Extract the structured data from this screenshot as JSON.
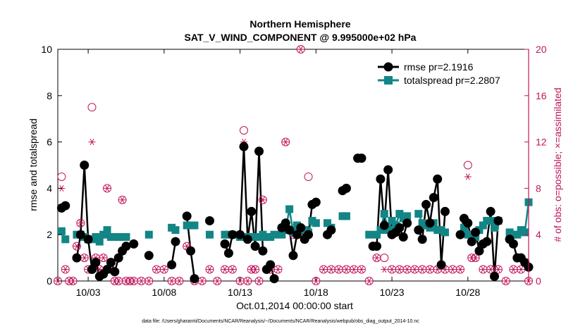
{
  "chart_data": {
    "type": "line",
    "title": "Northern Hemisphere",
    "subtitle": "SAT_V_WIND_COMPONENT @ 9.995000e+02 hPa",
    "xlabel": "Oct.01,2014 00:00:00 start",
    "ylabel": "rmse and totalspread",
    "y2label": "# of obs: o=possible; ×=assimilated",
    "footnote": "data file: /Users/gharamti/Documents/NCAR/Reanalysis/~/Documents/NCAR/Reanalysis/webpub/obs_diag_output_2014-10.nc",
    "xlim": [
      0.0,
      31.0
    ],
    "ylim": [
      0,
      10
    ],
    "y2lim": [
      0,
      20
    ],
    "xticks": [
      2,
      7,
      12,
      17,
      22,
      27
    ],
    "xtick_labels": [
      "10/03",
      "10/08",
      "10/13",
      "10/18",
      "10/23",
      "10/28"
    ],
    "yticks": [
      0,
      2,
      4,
      6,
      8,
      10
    ],
    "ytick_labels": [
      "0",
      "2",
      "4",
      "6",
      "8",
      "10"
    ],
    "y2ticks": [
      0,
      4,
      8,
      12,
      16,
      20
    ],
    "y2tick_labels": [
      "0",
      "4",
      "8",
      "12",
      "16",
      "20"
    ],
    "colors": {
      "rmse": "#000000",
      "spread": "#138585",
      "obs": "#c0145a"
    },
    "series": [
      {
        "name": "rmse",
        "legend_label": "rmse pr=2.1916",
        "marker": "circle",
        "segments": [
          {
            "x": [
              0.25,
              0.5
            ],
            "y": [
              3.15,
              3.25
            ]
          },
          {
            "x": [
              1.25,
              1.5,
              1.75,
              2.0,
              2.25,
              2.5,
              2.75,
              3.0,
              3.25,
              3.5,
              3.75,
              4.0,
              4.25,
              4.5
            ],
            "y": [
              1.0,
              2.0,
              5.0,
              1.8,
              0.5,
              0.8,
              0.2,
              0.3,
              0.5,
              0.8,
              0.4,
              1.0,
              1.3,
              1.5
            ]
          },
          {
            "x": [
              5.0
            ],
            "y": [
              1.6
            ]
          },
          {
            "x": [
              6.0
            ],
            "y": [
              1.1
            ]
          },
          {
            "x": [
              7.5,
              7.75
            ],
            "y": [
              0.7,
              1.7
            ]
          },
          {
            "x": [
              8.5,
              8.75,
              9.0
            ],
            "y": [
              2.8,
              1.3,
              0.1
            ]
          },
          {
            "x": [
              10.0
            ],
            "y": [
              2.6
            ]
          },
          {
            "x": [
              11.0,
              11.25,
              11.5
            ],
            "y": [
              1.6,
              1.2,
              2.0
            ]
          },
          {
            "x": [
              12.0,
              12.25,
              12.5,
              12.75,
              13.0,
              13.25,
              13.5
            ],
            "y": [
              2.0,
              5.8,
              1.8,
              3.0,
              1.5,
              5.6,
              1.3
            ]
          },
          {
            "x": [
              13.75,
              14.0,
              14.25
            ],
            "y": [
              0.5,
              0.7,
              0.1
            ]
          },
          {
            "x": [
              14.75,
              15.0,
              15.25,
              15.5,
              15.75,
              16.0,
              16.25,
              16.5,
              16.75,
              17.0
            ],
            "y": [
              2.3,
              2.5,
              2.2,
              1.1,
              2.0,
              2.3,
              1.8,
              2.0,
              3.3,
              3.4
            ]
          },
          {
            "x": [
              17.75,
              18.0
            ],
            "y": [
              2.0,
              2.2
            ]
          },
          {
            "x": [
              18.75,
              19.0
            ],
            "y": [
              3.9,
              4.0
            ]
          },
          {
            "x": [
              19.75,
              20.0
            ],
            "y": [
              5.3,
              5.3
            ]
          },
          {
            "x": [
              20.75,
              21.0,
              21.25,
              21.5,
              21.75,
              22.0,
              22.25,
              22.5,
              22.75,
              23.0
            ],
            "y": [
              1.5,
              1.5,
              4.4,
              2.4,
              4.8,
              2.0,
              2.1,
              2.3,
              1.9,
              2.5
            ]
          },
          {
            "x": [
              23.75,
              24.0,
              24.25,
              24.5,
              24.75,
              25.0,
              25.25,
              25.5
            ],
            "y": [
              2.2,
              1.8,
              3.3,
              2.5,
              3.6,
              4.4,
              0.7,
              3.0
            ]
          },
          {
            "x": [
              26.5,
              26.75,
              27.0,
              27.25,
              27.5,
              27.75,
              28.0,
              28.25,
              28.5,
              28.75,
              29.0
            ],
            "y": [
              2.0,
              2.7,
              2.5,
              1.7,
              2.1,
              1.3,
              1.6,
              1.7,
              3.0,
              0.2,
              2.6
            ]
          },
          {
            "x": [
              29.75,
              30.0,
              30.25,
              30.5,
              30.75,
              31.0
            ],
            "y": [
              1.8,
              1.6,
              1.0,
              1.0,
              0.8,
              0.6
            ]
          }
        ]
      },
      {
        "name": "totalspread",
        "legend_label": "totalspread pr=2.2807",
        "marker": "square",
        "segments": [
          {
            "x": [
              0.25,
              0.5
            ],
            "y": [
              2.15,
              1.8
            ]
          },
          {
            "x": [
              1.25,
              1.5,
              1.75,
              2.0,
              2.25,
              2.5,
              2.75,
              3.0,
              3.25,
              3.5,
              3.75,
              4.0,
              4.25,
              4.5
            ],
            "y": [
              2.0,
              2.0,
              1.9,
              1.8,
              1.8,
              1.9,
              1.7,
              2.0,
              2.2,
              1.9,
              1.9,
              1.9,
              1.9,
              1.9
            ]
          },
          {
            "x": [
              6.0
            ],
            "y": [
              2.0
            ]
          },
          {
            "x": [
              7.5,
              7.75
            ],
            "y": [
              2.3,
              2.2
            ]
          },
          {
            "x": [
              8.5,
              8.75,
              9.0
            ],
            "y": [
              2.4,
              2.4,
              2.4
            ]
          },
          {
            "x": [
              10.0
            ],
            "y": [
              2.0
            ]
          },
          {
            "x": [
              11.0,
              11.25,
              11.5
            ],
            "y": [
              2.0,
              2.0,
              2.0
            ]
          },
          {
            "x": [
              12.0,
              12.25,
              12.5,
              12.75,
              13.0,
              13.25,
              13.5
            ],
            "y": [
              1.9,
              1.9,
              1.9,
              1.9,
              1.9,
              1.9,
              2.0
            ]
          },
          {
            "x": [
              13.75,
              14.0,
              14.25
            ],
            "y": [
              1.9,
              1.9,
              2.0
            ]
          },
          {
            "x": [
              14.75,
              15.0,
              15.25,
              15.5,
              15.75,
              16.0,
              16.25,
              16.5,
              16.75,
              17.0
            ],
            "y": [
              2.0,
              2.2,
              3.1,
              2.1,
              2.4,
              2.2,
              2.2,
              2.1,
              2.6,
              2.5
            ]
          },
          {
            "x": [
              17.75,
              18.0
            ],
            "y": [
              2.5,
              2.3
            ]
          },
          {
            "x": [
              18.75,
              19.0
            ],
            "y": [
              2.8,
              2.8
            ]
          },
          {
            "x": [
              20.5,
              21.0,
              21.25,
              21.5,
              21.75,
              22.0,
              22.25,
              22.5,
              22.75,
              23.0
            ],
            "y": [
              2.0,
              2.0,
              2.2,
              2.9,
              2.2,
              2.6,
              2.4,
              2.9,
              2.7,
              2.8
            ]
          },
          {
            "x": [
              23.75,
              24.0,
              24.25,
              24.5,
              24.75,
              25.0,
              25.25,
              25.5
            ],
            "y": [
              2.9,
              2.5,
              2.4,
              2.3,
              2.5,
              2.2,
              2.2,
              2.1
            ]
          },
          {
            "x": [
              26.75,
              27.0,
              27.25,
              27.5,
              27.75,
              28.0,
              28.25,
              28.5,
              28.75,
              29.0
            ],
            "y": [
              2.3,
              2.0,
              2.0,
              1.9,
              2.2,
              2.4,
              2.6,
              2.6,
              2.3,
              2.6
            ]
          },
          {
            "x": [
              29.75,
              30.0,
              30.25,
              30.5,
              30.75,
              31.0
            ],
            "y": [
              2.1,
              2.0,
              2.0,
              2.2,
              2.1,
              3.4
            ]
          }
        ]
      },
      {
        "name": "obs_possible",
        "axis": "right",
        "marker": "open-circle",
        "x": [
          0.0,
          0.25,
          0.5,
          0.75,
          1.0,
          1.25,
          1.5,
          1.75,
          2.0,
          2.25,
          2.5,
          2.75,
          3.0,
          3.25,
          3.5,
          3.75,
          4.0,
          4.25,
          4.5,
          4.75,
          5.0,
          5.5,
          6.0,
          6.5,
          7.0,
          7.5,
          8.0,
          8.5,
          9.0,
          9.5,
          10.0,
          10.5,
          11.0,
          11.5,
          12.0,
          12.25,
          12.5,
          12.75,
          13.0,
          13.25,
          13.5,
          14.0,
          14.5,
          15.0,
          15.5,
          16.0,
          16.5,
          17.0,
          17.5,
          18.0,
          18.5,
          19.0,
          19.5,
          20.0,
          20.5,
          21.0,
          21.5,
          22.0,
          22.5,
          23.0,
          23.5,
          24.0,
          24.5,
          25.0,
          25.5,
          26.0,
          26.5,
          27.0,
          27.25,
          27.5,
          28.0,
          28.5,
          29.0,
          29.5,
          30.0,
          30.5,
          31.0
        ],
        "y": [
          0,
          9,
          1,
          0,
          0,
          3,
          5,
          2,
          1,
          15,
          2,
          1,
          2,
          8,
          1,
          0,
          0,
          7,
          0,
          0,
          0,
          0,
          0,
          1,
          1,
          0,
          0,
          3,
          0,
          0,
          1,
          0,
          1,
          1,
          0,
          13,
          0,
          1,
          1,
          0,
          7,
          1,
          1,
          12,
          4,
          20,
          9,
          0,
          1,
          1,
          1,
          1,
          1,
          1,
          0,
          2,
          2,
          1,
          1,
          1,
          1,
          1,
          1,
          1,
          1,
          1,
          1,
          10,
          2,
          2,
          1,
          1,
          1,
          0,
          1,
          1,
          0
        ]
      },
      {
        "name": "obs_assimilated",
        "axis": "right",
        "marker": "asterisk",
        "x": [
          0.0,
          0.25,
          0.5,
          0.75,
          1.0,
          1.25,
          1.5,
          1.75,
          2.0,
          2.25,
          2.5,
          2.75,
          3.0,
          3.25,
          3.5,
          3.75,
          4.0,
          4.25,
          4.5,
          4.75,
          5.0,
          5.5,
          6.0,
          6.5,
          7.0,
          7.5,
          8.0,
          8.5,
          9.0,
          9.5,
          10.0,
          10.5,
          11.0,
          11.5,
          12.0,
          12.25,
          12.5,
          12.75,
          13.0,
          13.25,
          13.5,
          14.0,
          14.5,
          15.0,
          15.5,
          16.0,
          16.5,
          17.0,
          17.5,
          18.0,
          18.5,
          19.0,
          19.5,
          20.0,
          20.5,
          21.0,
          21.5,
          22.0,
          22.5,
          23.0,
          23.5,
          24.0,
          24.5,
          25.0,
          25.5,
          26.0,
          26.5,
          27.0,
          27.25,
          27.5,
          28.0,
          28.5,
          29.0,
          29.5,
          30.0,
          30.5,
          31.0
        ],
        "y": [
          0,
          8,
          1,
          0,
          0,
          3,
          5,
          2,
          1,
          12,
          2,
          1,
          2,
          8,
          1,
          0,
          0,
          7,
          0,
          0,
          0,
          0,
          0,
          1,
          1,
          0,
          0,
          3,
          0,
          0,
          1,
          0,
          1,
          1,
          0,
          12,
          0,
          1,
          1,
          0,
          7,
          1,
          1,
          12,
          4,
          20,
          4,
          0,
          1,
          1,
          1,
          1,
          1,
          1,
          0,
          2,
          1,
          1,
          1,
          1,
          1,
          1,
          1,
          1,
          1,
          1,
          1,
          9,
          2,
          2,
          1,
          1,
          1,
          0,
          1,
          1,
          0
        ]
      }
    ],
    "legend": {
      "position": "top-right"
    }
  }
}
